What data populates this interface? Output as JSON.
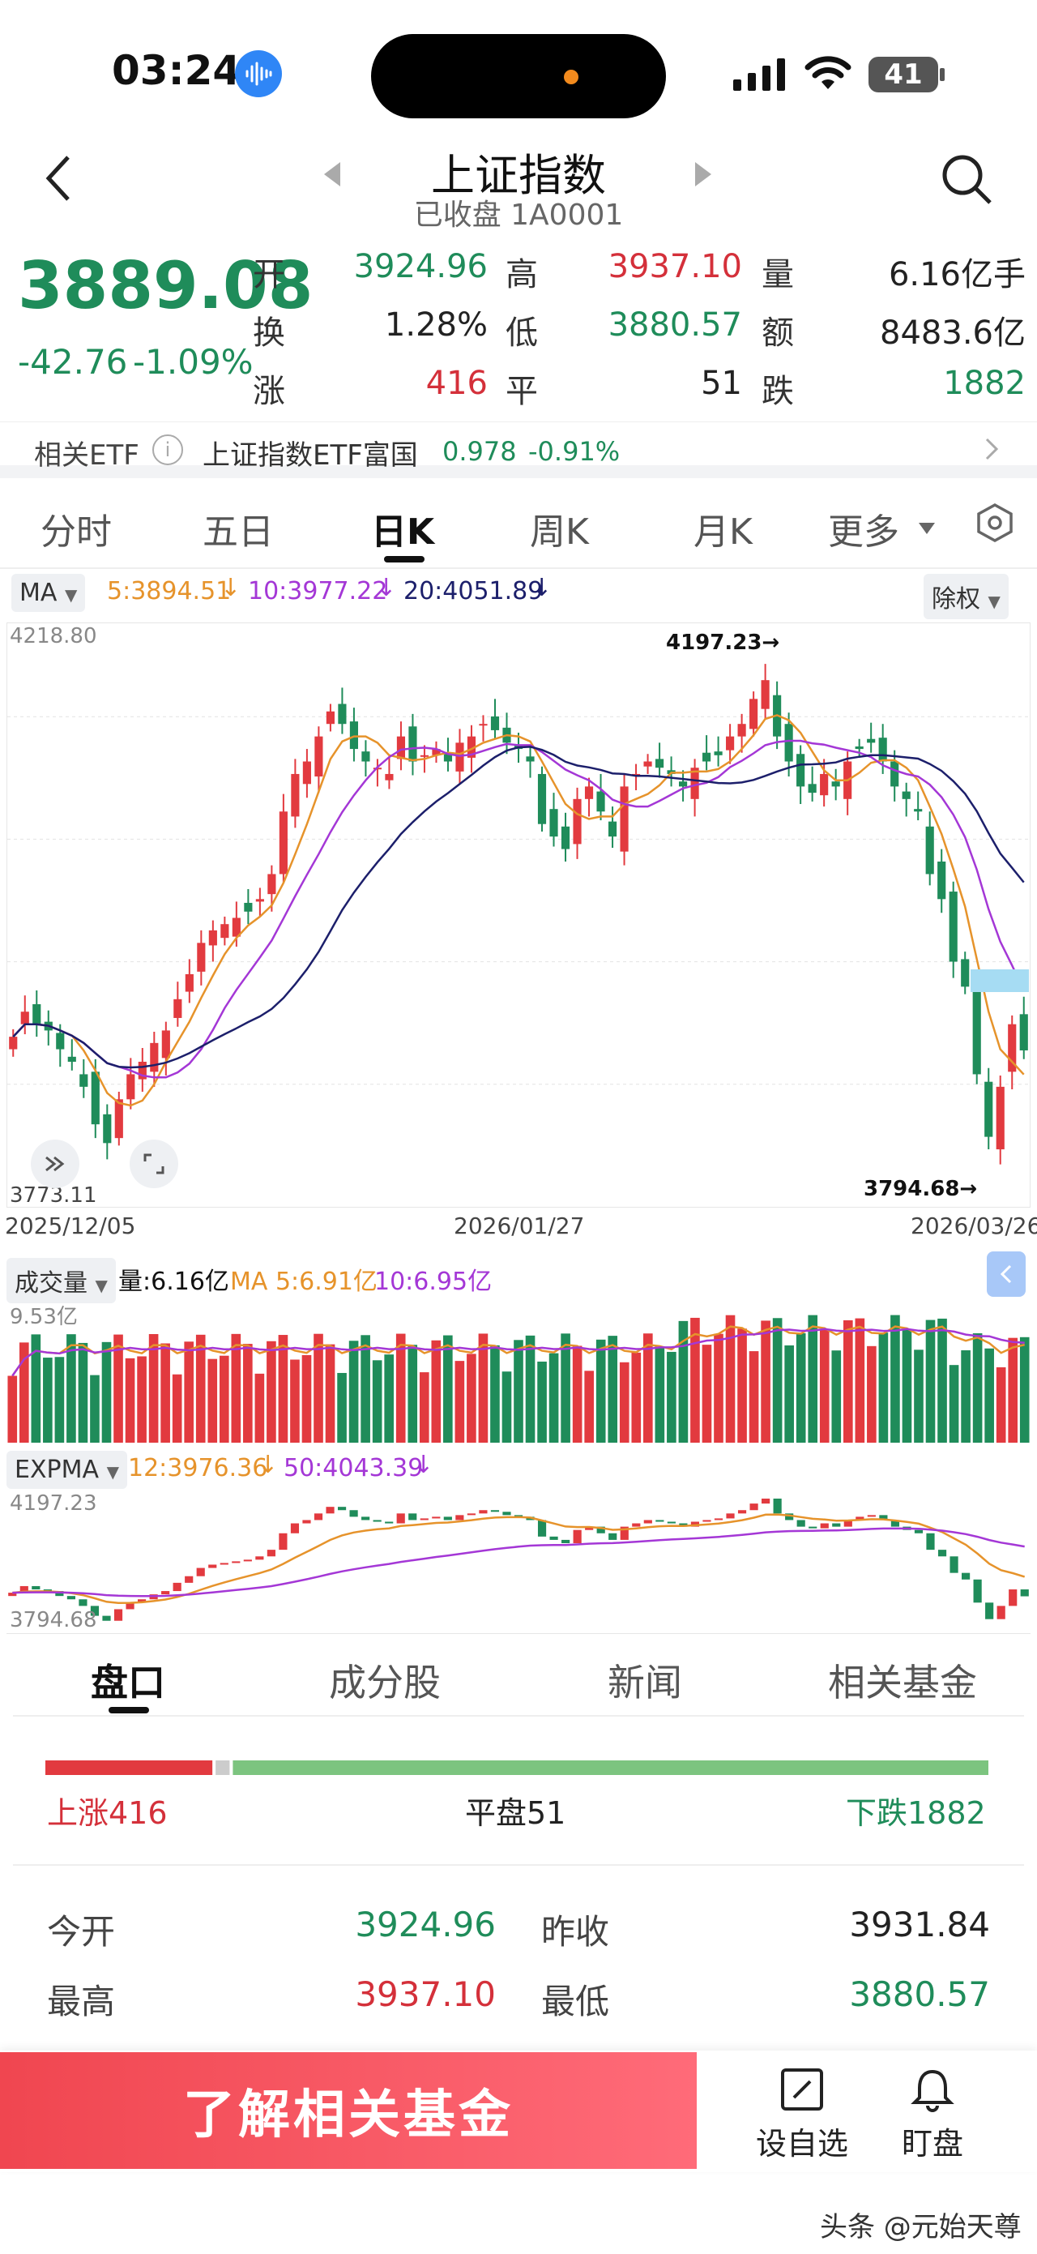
{
  "status": {
    "time": "03:24",
    "battery": "41"
  },
  "header": {
    "title": "上证指数",
    "subtitle": "已收盘 1A0001"
  },
  "quote": {
    "price": "3889.08",
    "change": "-42.76",
    "change_pct": "-1.09%",
    "open_label": "开",
    "open": "3924.96",
    "high_label": "高",
    "high": "3937.10",
    "volume_label": "量",
    "volume": "6.16亿手",
    "turnover_rate_label": "换",
    "turnover_rate": "1.28%",
    "low_label": "低",
    "low": "3880.57",
    "amount_label": "额",
    "amount": "8483.6亿",
    "up_label": "涨",
    "up": "416",
    "flat_label": "平",
    "flat": "51",
    "down_label": "跌",
    "down": "1882"
  },
  "etf": {
    "label": "相关ETF",
    "name": "上证指数ETF富国",
    "price": "0.978",
    "change": "-0.91%"
  },
  "tabs": [
    "分时",
    "五日",
    "日K",
    "周K",
    "月K",
    "更多"
  ],
  "active_tab": "日K",
  "ma_bar": {
    "label": "MA",
    "ma5": "5:3894.51",
    "ma10": "10:3977.22",
    "ma20": "20:4051.89",
    "adjust": "除权",
    "colors": {
      "ma5": "#e6932b",
      "ma10": "#a437d6",
      "ma20": "#1c1f6b"
    }
  },
  "kline": {
    "y_max_label": "4218.80",
    "y_min_label": "3773.11",
    "high_mark": "4197.23→",
    "low_mark": "3794.68→",
    "dates": [
      "2025/12/05",
      "2026/01/27",
      "2026/03/26"
    ]
  },
  "volume_bar": {
    "label": "成交量",
    "vol": "量:6.16亿",
    "ma5": "MA 5:6.91亿",
    "ma10": "10:6.95亿",
    "max_label": "9.53亿"
  },
  "expma_bar": {
    "label": "EXPMA",
    "e12": "12:3976.36",
    "e50": "50:4043.39",
    "max_label": "4197.23",
    "min_label": "3794.68"
  },
  "chart_data": {
    "type": "candlestick",
    "ylim": [
      3773.11,
      4218.8
    ],
    "x_start": "2025/12/05",
    "x_end": "2026/03/26",
    "highest": 4197.23,
    "lowest": 3794.68,
    "closes_approx": [
      3900,
      3920,
      3910,
      3905,
      3890,
      3880,
      3860,
      3830,
      3815,
      3850,
      3870,
      3880,
      3895,
      3905,
      3930,
      3950,
      3975,
      3985,
      3990,
      3995,
      4000,
      4010,
      4030,
      4080,
      4110,
      4120,
      4140,
      4160,
      4150,
      4130,
      4120,
      4115,
      4110,
      4140,
      4120,
      4125,
      4130,
      4120,
      4135,
      4140,
      4150,
      4145,
      4135,
      4130,
      4120,
      4070,
      4060,
      4050,
      4090,
      4100,
      4080,
      4060,
      4100,
      4110,
      4120,
      4115,
      4110,
      4100,
      4115,
      4120,
      4125,
      4140,
      4150,
      4170,
      4185,
      4140,
      4120,
      4100,
      4095,
      4110,
      4100,
      4120,
      4130,
      4135,
      4120,
      4100,
      4090,
      4080,
      4030,
      4010,
      3960,
      3940,
      3870,
      3820,
      3860,
      3910,
      3889.08
    ]
  },
  "bottom_tabs": [
    "盘口",
    "成分股",
    "新闻",
    "相关基金"
  ],
  "breadth": {
    "up": "上涨416",
    "flat": "平盘51",
    "down": "下跌1882"
  },
  "detail": {
    "open_label": "今开",
    "open": "3924.96",
    "prev_label": "昨收",
    "prev": "3931.84",
    "high_label": "最高",
    "high": "3937.10",
    "low_label": "最低",
    "low": "3880.57"
  },
  "bottom_bar": {
    "cta": "了解相关基金",
    "watch": "设自选",
    "monitor": "盯盘"
  },
  "watermark": "头条 @元始天尊"
}
